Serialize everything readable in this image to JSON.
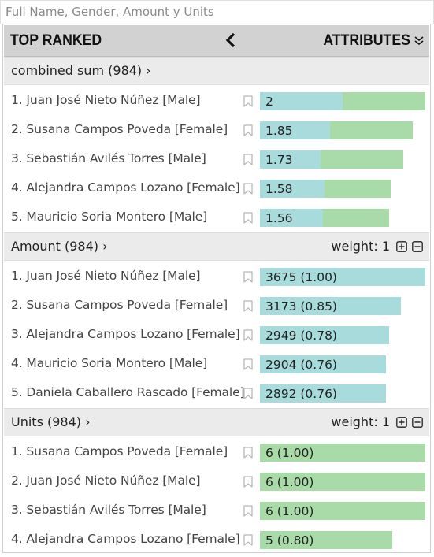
{
  "title": "Full Name, Gender, Amount y Units",
  "header": {
    "left_label": "TOP RANKED",
    "right_label": "ATTRIBUTES"
  },
  "colors": {
    "amount": "#a8dcdc",
    "units": "#a8dba8"
  },
  "sections": [
    {
      "id": "combined",
      "title": "combined sum (984) ›",
      "weight_label": "",
      "rows": [
        {
          "label": "1. Juan José Nieto Núñez [Male]",
          "value_text": "2",
          "amount_frac": 0.5,
          "units_frac": 0.5
        },
        {
          "label": "2. Susana Campos Poveda [Female]",
          "value_text": "1.85",
          "amount_frac": 0.425,
          "units_frac": 0.5
        },
        {
          "label": "3. Sebastián Avilés Torres [Male]",
          "value_text": "1.73",
          "amount_frac": 0.365,
          "units_frac": 0.5
        },
        {
          "label": "4. Alejandra Campos Lozano [Female]",
          "value_text": "1.58",
          "amount_frac": 0.39,
          "units_frac": 0.4
        },
        {
          "label": "5. Mauricio Soria Montero [Male]",
          "value_text": "1.56",
          "amount_frac": 0.38,
          "units_frac": 0.4
        }
      ]
    },
    {
      "id": "amount",
      "title": "Amount (984) ›",
      "weight_label": "weight: 1",
      "rows": [
        {
          "label": "1. Juan José Nieto Núñez [Male]",
          "value_text": "3675 (1.00)",
          "amount_frac": 1.0,
          "units_frac": 0
        },
        {
          "label": "2. Susana Campos Poveda [Female]",
          "value_text": "3173 (0.85)",
          "amount_frac": 0.85,
          "units_frac": 0
        },
        {
          "label": "3. Alejandra Campos Lozano [Female]",
          "value_text": "2949 (0.78)",
          "amount_frac": 0.78,
          "units_frac": 0
        },
        {
          "label": "4. Mauricio Soria Montero [Male]",
          "value_text": "2904 (0.76)",
          "amount_frac": 0.76,
          "units_frac": 0
        },
        {
          "label": "5. Daniela Caballero Rascado [Female]",
          "value_text": "2892 (0.76)",
          "amount_frac": 0.76,
          "units_frac": 0
        }
      ]
    },
    {
      "id": "units",
      "title": "Units (984) ›",
      "weight_label": "weight: 1",
      "rows": [
        {
          "label": "1. Susana Campos Poveda [Female]",
          "value_text": "6 (1.00)",
          "amount_frac": 0,
          "units_frac": 1.0
        },
        {
          "label": "2. Juan José Nieto Núñez [Male]",
          "value_text": "6 (1.00)",
          "amount_frac": 0,
          "units_frac": 1.0
        },
        {
          "label": "3. Sebastián Avilés Torres [Male]",
          "value_text": "6 (1.00)",
          "amount_frac": 0,
          "units_frac": 1.0
        },
        {
          "label": "4. Alejandra Campos Lozano [Female]",
          "value_text": "5 (0.80)",
          "amount_frac": 0,
          "units_frac": 0.8
        }
      ]
    }
  ]
}
